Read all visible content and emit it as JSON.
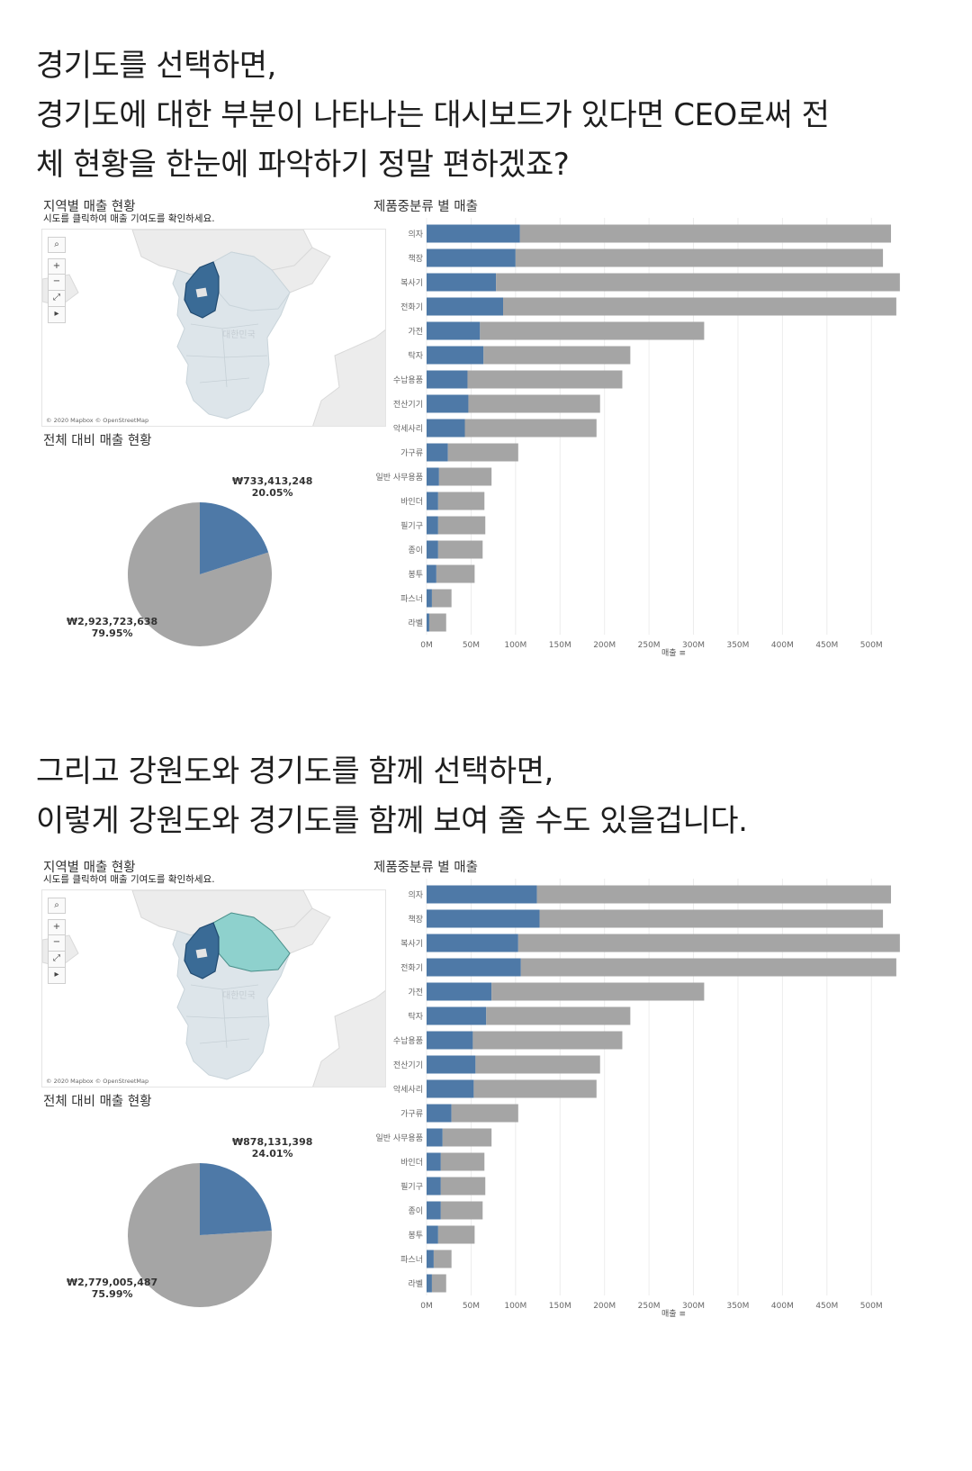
{
  "intro": {
    "line1": "경기도를 선택하면,",
    "line2": "경기도에 대한 부분이 나타나는 대시보드가 있다면 CEO로써 전",
    "line3": "체 현황을 한눈에 파악하기 정말 편하겠죠?"
  },
  "second_intro": {
    "line1": "그리고 강원도와 경기도를 함께 선택하면,",
    "line2": "이렇게 강원도와 경기도를 함께 보여 줄 수도 있을겁니다."
  },
  "dashboards": [
    {
      "map_title": "지역별 매출 현황",
      "map_subtitle": "시도를 클릭하여 매출 기여도를 확인하세요.",
      "map_attribution": "© 2020 Mapbox © OpenStreetMap",
      "map_country_label": "대한민국",
      "selected_regions": [
        "경기도"
      ],
      "pie_title": "전체 대비 매출 현황",
      "pie": {
        "selected_amount": "₩733,413,248",
        "selected_pct": "20.05%",
        "other_amount": "₩2,923,723,638",
        "other_pct": "79.95%",
        "selected_share": 0.2005
      },
      "bar_title": "제품중분류 별 매출",
      "x_axis_label": "매출",
      "colors": {
        "selected": "#4e79a7",
        "other": "#a5a5a5"
      }
    },
    {
      "map_title": "지역별 매출 현황",
      "map_subtitle": "시도를 클릭하여 매출 기여도를 확인하세요.",
      "map_attribution": "© 2020 Mapbox © OpenStreetMap",
      "map_country_label": "대한민국",
      "selected_regions": [
        "경기도",
        "강원도"
      ],
      "pie_title": "전체 대비 매출 현황",
      "pie": {
        "selected_amount": "₩878,131,398",
        "selected_pct": "24.01%",
        "other_amount": "₩2,779,005,487",
        "other_pct": "75.99%",
        "selected_share": 0.2401
      },
      "bar_title": "제품중분류 별 매출",
      "x_axis_label": "매출",
      "colors": {
        "selected": "#4e79a7",
        "other": "#a5a5a5"
      }
    }
  ],
  "chart_data": [
    {
      "type": "bar",
      "orientation": "horizontal",
      "stacked": true,
      "title": "제품중분류 별 매출",
      "xlabel": "매출",
      "ylabel": "",
      "xlim": [
        0,
        520
      ],
      "x_unit": "M",
      "x_ticks": [
        "0M",
        "50M",
        "100M",
        "150M",
        "200M",
        "250M",
        "300M",
        "350M",
        "400M",
        "450M",
        "500M"
      ],
      "categories": [
        "의자",
        "책장",
        "복사기",
        "전화기",
        "가전",
        "탁자",
        "수납용품",
        "전산기기",
        "악세사리",
        "가구류",
        "일반 사무용품",
        "바인더",
        "필기구",
        "종이",
        "봉투",
        "파스너",
        "라벨"
      ],
      "series": [
        {
          "values": [
            105,
            100,
            78,
            86,
            60,
            64,
            46,
            47,
            43,
            24,
            14,
            13,
            13,
            13,
            11,
            6,
            3
          ]
        },
        {
          "values": [
            417,
            413,
            454,
            442,
            252,
            165,
            174,
            148,
            148,
            79,
            59,
            52,
            53,
            50,
            43,
            22,
            19
          ]
        }
      ]
    },
    {
      "type": "bar",
      "orientation": "horizontal",
      "stacked": true,
      "title": "제품중분류 별 매출",
      "xlabel": "매출",
      "ylabel": "",
      "xlim": [
        0,
        520
      ],
      "x_unit": "M",
      "x_ticks": [
        "0M",
        "50M",
        "100M",
        "150M",
        "200M",
        "250M",
        "300M",
        "350M",
        "400M",
        "450M",
        "500M"
      ],
      "categories": [
        "의자",
        "책장",
        "복사기",
        "전화기",
        "가전",
        "탁자",
        "수납용품",
        "전산기기",
        "악세사리",
        "가구류",
        "일반 사무용품",
        "바인더",
        "필기구",
        "종이",
        "봉투",
        "파스너",
        "라벨"
      ],
      "series": [
        {
          "values": [
            124,
            127,
            103,
            106,
            73,
            67,
            52,
            55,
            53,
            28,
            18,
            16,
            16,
            16,
            13,
            8,
            6
          ]
        },
        {
          "values": [
            398,
            386,
            429,
            422,
            239,
            162,
            168,
            140,
            138,
            75,
            55,
            49,
            50,
            47,
            41,
            20,
            16
          ]
        }
      ]
    }
  ]
}
